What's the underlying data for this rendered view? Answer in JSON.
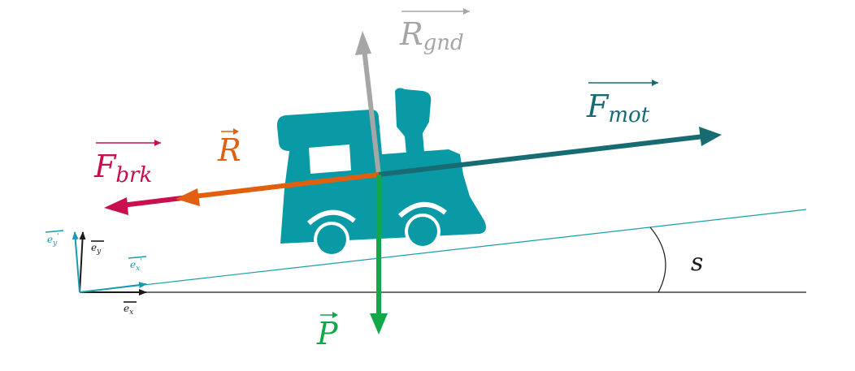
{
  "labels": {
    "r_gnd": {
      "base": "R",
      "sub": "gnd"
    },
    "f_mot": {
      "base": "F",
      "sub": "mot"
    },
    "f_brk": {
      "base": "F",
      "sub": "brk"
    },
    "r": "R",
    "p": "P",
    "slope_angle": "s",
    "ex": {
      "base": "e",
      "sub": "x"
    },
    "ey": {
      "base": "e",
      "sub": "y"
    },
    "ex_prime": {
      "base": "e",
      "sub": "x",
      "prime": "'"
    },
    "ey_prime": {
      "base": "e",
      "sub": "y",
      "prime": "'"
    }
  },
  "colors": {
    "train": "#0a9aa6",
    "f_mot": "#186b72",
    "f_brk": "#c8104f",
    "r": "#e0600f",
    "p": "#12a84a",
    "r_gnd": "#a6a6a6",
    "axes_ground": "#1a1a1a",
    "slope": "#1aa0a8",
    "basis_prime": "#1a9ab0"
  },
  "icons": {
    "train": "locomotive-icon"
  }
}
